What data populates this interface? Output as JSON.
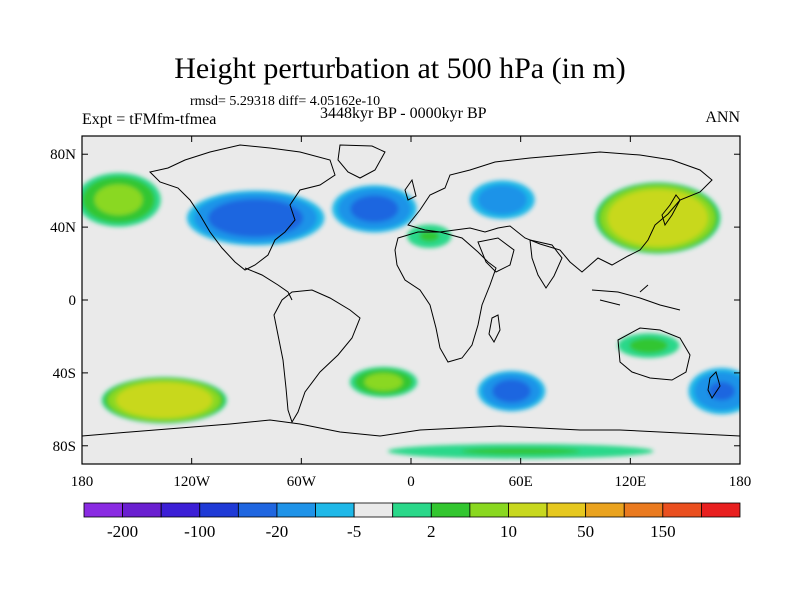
{
  "title": "Height perturbation at 500 hPa (in m)",
  "stats_line": "rmsd= 5.29318  diff= 4.05162e-10",
  "experiment": "Expt = tFMfm-tfmea",
  "period": "3448kyr BP - 0000kyr BP",
  "season": "ANN",
  "axes": {
    "lat_labels": [
      "80N",
      "40N",
      "0",
      "40S",
      "80S"
    ],
    "lat_values": [
      80,
      40,
      0,
      -40,
      -80
    ],
    "lon_labels": [
      "180",
      "120W",
      "60W",
      "0",
      "60E",
      "120E",
      "180"
    ],
    "lon_values": [
      -180,
      -120,
      -60,
      0,
      60,
      120,
      180
    ]
  },
  "colorbar": {
    "colors": [
      "#8a2be2",
      "#6a1fd0",
      "#3c1fd6",
      "#1f3ad6",
      "#1f66e0",
      "#1f93e8",
      "#1fb8e8",
      "#eaeaea",
      "#2ad88a",
      "#33c630",
      "#8ad820",
      "#c8d81f",
      "#e6c81f",
      "#eaa31f",
      "#ea7a1f",
      "#ea4f1f",
      "#e81f1f"
    ],
    "labels": [
      "-200",
      "-100",
      "-20",
      "-5",
      "2",
      "10",
      "50",
      "150"
    ],
    "label_slots": [
      0.5,
      2.5,
      4.5,
      6.5,
      8.5,
      10.5,
      12.5,
      14.5
    ]
  },
  "chart_data": {
    "type": "heatmap",
    "title": "Height perturbation at 500 hPa (in m)",
    "variable": "500 hPa geopotential height perturbation (m)",
    "xlabel": "",
    "ylabel": "",
    "xlim": [
      -180,
      180
    ],
    "ylim": [
      -90,
      90
    ],
    "levels": [
      -200,
      -100,
      -50,
      -20,
      -10,
      -5,
      -2,
      2,
      5,
      10,
      20,
      50,
      100,
      150,
      200
    ],
    "anomalies": [
      {
        "name": "N Pacific positive",
        "lon": -160,
        "lat": 55,
        "value": 12,
        "rx": 25,
        "ry": 16
      },
      {
        "name": "N America negative",
        "lon": -85,
        "lat": 45,
        "value": -15,
        "rx": 40,
        "ry": 16
      },
      {
        "name": "N Atlantic negative",
        "lon": -20,
        "lat": 50,
        "value": -12,
        "rx": 25,
        "ry": 14
      },
      {
        "name": "N Africa positive",
        "lon": 10,
        "lat": 35,
        "value": 5,
        "rx": 15,
        "ry": 8
      },
      {
        "name": "Eurasia negative",
        "lon": 50,
        "lat": 55,
        "value": -8,
        "rx": 20,
        "ry": 12
      },
      {
        "name": "E Asia positive",
        "lon": 135,
        "lat": 45,
        "value": 45,
        "rx": 35,
        "ry": 20
      },
      {
        "name": "S Pacific positive",
        "lon": -135,
        "lat": -55,
        "value": 40,
        "rx": 35,
        "ry": 13
      },
      {
        "name": "S Atlantic positive",
        "lon": -15,
        "lat": -45,
        "value": 12,
        "rx": 20,
        "ry": 9
      },
      {
        "name": "Indian Ocean negative",
        "lon": 55,
        "lat": -50,
        "value": -12,
        "rx": 20,
        "ry": 12
      },
      {
        "name": "Australia positive",
        "lon": 130,
        "lat": -25,
        "value": 6,
        "rx": 20,
        "ry": 8
      },
      {
        "name": "SW Pacific negative",
        "lon": 170,
        "lat": -50,
        "value": -10,
        "rx": 20,
        "ry": 14
      },
      {
        "name": "Antarctic coast positive",
        "lon": 60,
        "lat": -83,
        "value": 5,
        "rx": 90,
        "ry": 5
      }
    ]
  }
}
